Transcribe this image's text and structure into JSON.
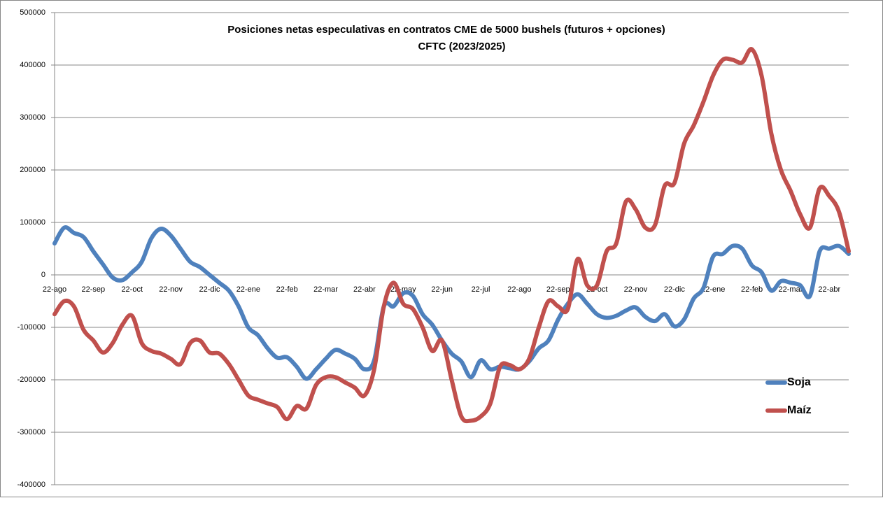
{
  "chart_data": {
    "type": "line",
    "title": "Posiciones netas especulativas en contratos CME de 5000 bushels (futuros + opciones)",
    "subtitle": "CFTC (2023/2025)",
    "categories": [
      "22-ago",
      null,
      null,
      null,
      "22-sep",
      null,
      null,
      null,
      "22-oct",
      null,
      null,
      null,
      "22-nov",
      null,
      null,
      null,
      "22-dic",
      null,
      null,
      null,
      "22-ene",
      null,
      null,
      null,
      "22-feb",
      null,
      null,
      null,
      "22-mar",
      null,
      null,
      null,
      "22-abr",
      null,
      null,
      null,
      "22-may",
      null,
      null,
      null,
      "22-jun",
      null,
      null,
      null,
      "22-jul",
      null,
      null,
      null,
      "22-ago",
      null,
      null,
      null,
      "22-sep",
      null,
      null,
      null,
      "22-oct",
      null,
      null,
      null,
      "22-nov",
      null,
      null,
      null,
      "22-dic",
      null,
      null,
      null,
      "22-ene",
      null,
      null,
      null,
      "22-feb",
      null,
      null,
      null,
      "22-mar",
      null,
      null,
      null,
      "22-abr",
      null,
      null
    ],
    "series": [
      {
        "name": "Soja",
        "color": "#4f81bd",
        "values": [
          60000,
          90000,
          80000,
          72000,
          45000,
          20000,
          -5000,
          -10000,
          5000,
          25000,
          70000,
          88000,
          75000,
          50000,
          25000,
          15000,
          0,
          -15000,
          -30000,
          -60000,
          -100000,
          -115000,
          -140000,
          -158000,
          -157000,
          -175000,
          -198000,
          -180000,
          -160000,
          -143000,
          -150000,
          -160000,
          -180000,
          -163000,
          -60000,
          -60000,
          -35000,
          -40000,
          -75000,
          -95000,
          -125000,
          -150000,
          -165000,
          -195000,
          -163000,
          -180000,
          -175000,
          -178000,
          -180000,
          -165000,
          -140000,
          -125000,
          -85000,
          -55000,
          -37000,
          -55000,
          -75000,
          -82000,
          -78000,
          -68000,
          -62000,
          -80000,
          -88000,
          -75000,
          -98000,
          -85000,
          -45000,
          -25000,
          35000,
          40000,
          55000,
          50000,
          18000,
          5000,
          -30000,
          -12000,
          -15000,
          -20000,
          -40000,
          45000,
          50000,
          55000,
          40000
        ]
      },
      {
        "name": "Maíz",
        "color": "#c0504d",
        "values": [
          -75000,
          -50000,
          -60000,
          -105000,
          -125000,
          -148000,
          -130000,
          -95000,
          -78000,
          -130000,
          -145000,
          -150000,
          -160000,
          -170000,
          -130000,
          -125000,
          -148000,
          -150000,
          -170000,
          -200000,
          -230000,
          -238000,
          -245000,
          -252000,
          -275000,
          -250000,
          -255000,
          -210000,
          -195000,
          -195000,
          -205000,
          -215000,
          -230000,
          -180000,
          -60000,
          -15000,
          -55000,
          -65000,
          -100000,
          -145000,
          -125000,
          -200000,
          -270000,
          -278000,
          -270000,
          -245000,
          -175000,
          -172000,
          -180000,
          -160000,
          -100000,
          -50000,
          -60000,
          -65000,
          30000,
          -20000,
          -20000,
          45000,
          60000,
          140000,
          125000,
          90000,
          95000,
          170000,
          175000,
          250000,
          285000,
          330000,
          380000,
          410000,
          410000,
          405000,
          430000,
          380000,
          270000,
          200000,
          160000,
          115000,
          90000,
          165000,
          150000,
          120000,
          45000
        ]
      }
    ],
    "ylim": [
      -400000,
      500000
    ],
    "yticks": [
      -400000,
      -300000,
      -200000,
      -100000,
      0,
      100000,
      200000,
      300000,
      400000,
      500000
    ],
    "grid": true
  }
}
